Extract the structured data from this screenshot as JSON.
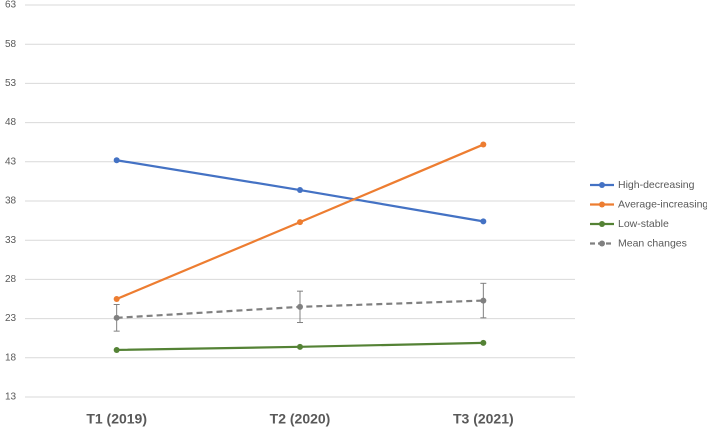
{
  "chart_data": {
    "type": "line",
    "categories": [
      "T1 (2019)",
      "T2 (2020)",
      "T3 (2021)"
    ],
    "series": [
      {
        "name": "High-decreasing",
        "color": "#4472c4",
        "values": [
          43.2,
          39.4,
          35.4
        ]
      },
      {
        "name": "Average-increasing",
        "color": "#ed7d31",
        "values": [
          25.5,
          35.3,
          45.2
        ]
      },
      {
        "name": "Low-stable",
        "color": "#548235",
        "values": [
          19.0,
          19.4,
          19.9
        ]
      },
      {
        "name": "Mean changes",
        "color": "#808080",
        "dashed": true,
        "values": [
          23.1,
          24.5,
          25.3
        ],
        "errors": [
          1.7,
          2.0,
          2.2
        ]
      }
    ],
    "ylim": [
      13,
      63
    ],
    "yticks": [
      13,
      18,
      23,
      28,
      33,
      38,
      43,
      48,
      53,
      58,
      63
    ],
    "grid": true,
    "legend": "right"
  }
}
